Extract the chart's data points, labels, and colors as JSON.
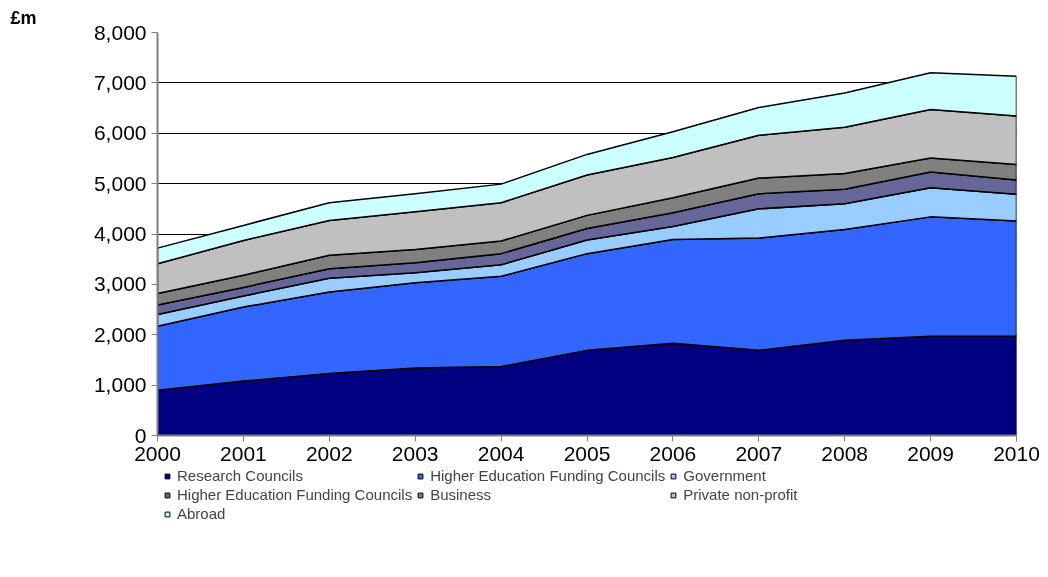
{
  "chart_data": {
    "type": "area",
    "stacked": true,
    "ylabel": "£m",
    "x": [
      2000,
      2001,
      2002,
      2003,
      2004,
      2005,
      2006,
      2007,
      2008,
      2009,
      2010
    ],
    "xlim": [
      2000,
      2010
    ],
    "xticks": [
      2000,
      2001,
      2002,
      2003,
      2004,
      2005,
      2006,
      2007,
      2008,
      2009,
      2010
    ],
    "ylim": [
      0,
      8000
    ],
    "yticks": [
      {
        "value": 0,
        "label": "0"
      },
      {
        "value": 1000,
        "label": "1,000"
      },
      {
        "value": 2000,
        "label": "2,000"
      },
      {
        "value": 3000,
        "label": "3,000"
      },
      {
        "value": 4000,
        "label": "4,000"
      },
      {
        "value": 5000,
        "label": "5,000"
      },
      {
        "value": 6000,
        "label": "6,000"
      },
      {
        "value": 7000,
        "label": "7,000"
      },
      {
        "value": 8000,
        "label": "8,000"
      }
    ],
    "grid": "y",
    "legend": "bottom",
    "series": [
      {
        "name": "Research Councils",
        "color": "#000080",
        "values": [
          900,
          1080,
          1230,
          1340,
          1370,
          1690,
          1830,
          1690,
          1890,
          1970,
          1970
        ]
      },
      {
        "name": "Higher Education Funding Councils",
        "color": "#3366ff",
        "values": [
          1270,
          1470,
          1620,
          1690,
          1790,
          1920,
          2060,
          2230,
          2200,
          2370,
          2290
        ]
      },
      {
        "name": "Government",
        "color": "#99ccff",
        "values": [
          230,
          220,
          270,
          200,
          230,
          270,
          260,
          580,
          510,
          580,
          530
        ]
      },
      {
        "name": "Higher Education Funding Councils",
        "color": "#666699",
        "values": [
          190,
          170,
          190,
          200,
          220,
          230,
          270,
          300,
          290,
          310,
          280
        ]
      },
      {
        "name": "Business",
        "color": "#808080",
        "values": [
          230,
          240,
          270,
          260,
          250,
          260,
          300,
          310,
          310,
          280,
          310
        ]
      },
      {
        "name": "Private non-profit",
        "color": "#c0c0c0",
        "values": [
          590,
          690,
          690,
          750,
          760,
          800,
          800,
          850,
          920,
          960,
          960
        ]
      },
      {
        "name": "Abroad",
        "color": "#ccffff",
        "values": [
          310,
          300,
          350,
          360,
          370,
          410,
          510,
          550,
          680,
          730,
          790
        ]
      }
    ]
  }
}
